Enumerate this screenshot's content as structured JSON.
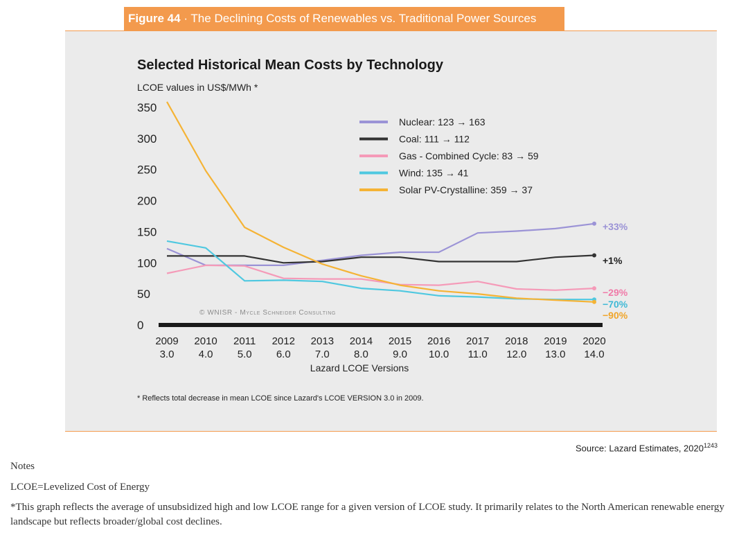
{
  "figure": {
    "number": "Figure 44",
    "separator": "·",
    "title": "The Declining Costs of Renewables vs. Traditional Power Sources"
  },
  "chart_data": {
    "type": "line",
    "title": "Selected Historical Mean Costs by Technology",
    "subtitle": "LCOE values in US$/MWh *",
    "xlabel": "Lazard LCOE Versions",
    "x": [
      "2009",
      "2010",
      "2011",
      "2012",
      "2013",
      "2014",
      "2015",
      "2016",
      "2017",
      "2018",
      "2019",
      "2020"
    ],
    "x_versions": [
      "3.0",
      "4.0",
      "5.0",
      "6.0",
      "7.0",
      "8.0",
      "9.0",
      "10.0",
      "11.0",
      "12.0",
      "13.0",
      "14.0"
    ],
    "yticks": [
      0,
      50,
      100,
      150,
      200,
      250,
      300,
      350
    ],
    "ylim": [
      0,
      359
    ],
    "grid": false,
    "legend_position": "top-right",
    "series": [
      {
        "name": "Nuclear: 123 → 163",
        "color": "#9b93d6",
        "change": "+33%",
        "change_color": "#9b93d6",
        "values": [
          123,
          96,
          96,
          96,
          104,
          112,
          117,
          117,
          148,
          151,
          155,
          163
        ]
      },
      {
        "name": "Coal: 111 → 112",
        "color": "#333333",
        "change": "+1%",
        "change_color": "#222222",
        "values": [
          111,
          111,
          111,
          100,
          102,
          109,
          109,
          102,
          102,
          102,
          109,
          112
        ]
      },
      {
        "name": "Gas - Combined Cycle: 83 → 59",
        "color": "#f59ab8",
        "change": "−29%",
        "change_color": "#f07aa8",
        "values": [
          83,
          96,
          95,
          75,
          74,
          74,
          65,
          64,
          70,
          58,
          56,
          59
        ]
      },
      {
        "name": "Wind: 135 → 41",
        "color": "#4fc8e0",
        "change": "−70%",
        "change_color": "#3fb9d6",
        "values": [
          135,
          124,
          71,
          72,
          70,
          59,
          55,
          47,
          45,
          42,
          41,
          41
        ]
      },
      {
        "name": "Solar PV-Crystalline: 359 → 37",
        "color": "#f5b335",
        "change": "−90%",
        "change_color": "#f0a52a",
        "values": [
          359,
          248,
          157,
          125,
          98,
          79,
          64,
          55,
          50,
          43,
          40,
          37
        ]
      }
    ],
    "watermark": "© WNISR - Mycle Schneider Consulting",
    "footnote": "* Reflects total decrease in mean LCOE since Lazard's  LCOE VERSION 3.0 in 2009."
  },
  "source": {
    "text": "Source: Lazard Estimates, 2020",
    "ref": "1243"
  },
  "notes": {
    "heading": "Notes",
    "definition": "LCOE=Levelized Cost of Energy",
    "footnote": "*This graph reflects the average of unsubsidized high and low LCOE range for a given version of LCOE study. It primarily relates to the North American renewable energy landscape but reflects broader/global cost declines."
  }
}
